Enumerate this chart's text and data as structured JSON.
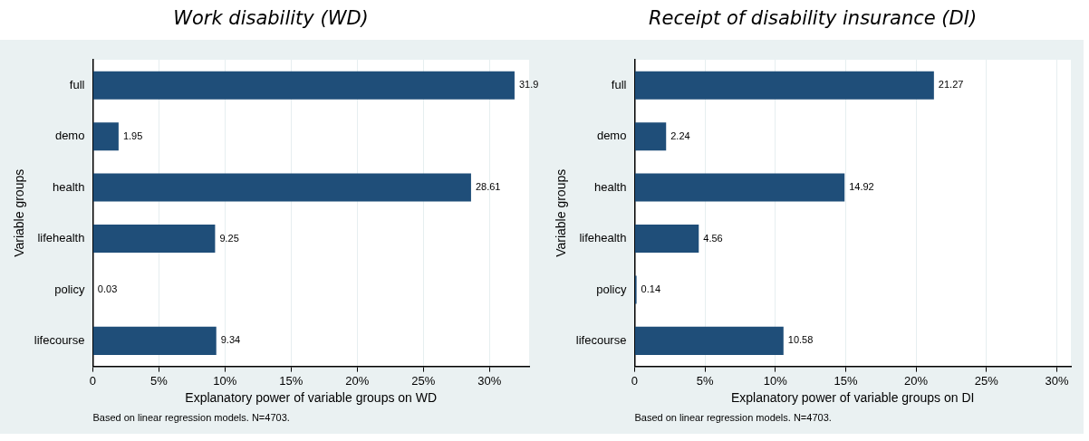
{
  "chart_data": [
    {
      "type": "bar",
      "orientation": "horizontal",
      "title": "Work disability (WD)",
      "xlabel": "Explanatory power of variable groups on WD",
      "ylabel": "Variable groups",
      "categories": [
        "full",
        "demo",
        "health",
        "lifehealth",
        "policy",
        "lifecourse"
      ],
      "values": [
        31.9,
        1.95,
        28.61,
        9.25,
        0.03,
        9.34
      ],
      "color": "#1f4e79",
      "data_labels": true,
      "xlim": [
        0,
        33
      ],
      "xticks": [
        0,
        {
          "value": 5,
          "label": "5%"
        },
        {
          "value": 10,
          "label": "10%"
        },
        {
          "value": 15,
          "label": "15%"
        },
        {
          "value": 20,
          "label": "20%"
        },
        {
          "value": 25,
          "label": "25%"
        },
        {
          "value": 30,
          "label": "30%"
        }
      ],
      "grid": "x",
      "legend": false,
      "annotations": [
        "Based on linear regression models. N=4703."
      ]
    },
    {
      "type": "bar",
      "orientation": "horizontal",
      "title": "Receipt of disability insurance (DI)",
      "xlabel": "Explanatory power of variable groups on DI",
      "ylabel": "Variable groups",
      "categories": [
        "full",
        "demo",
        "health",
        "lifehealth",
        "policy",
        "lifecourse"
      ],
      "values": [
        21.27,
        2.24,
        14.92,
        4.56,
        0.14,
        10.58
      ],
      "color": "#1f4e79",
      "data_labels": true,
      "xlim": [
        0,
        31
      ],
      "xticks": [
        0,
        {
          "value": 5,
          "label": "5%"
        },
        {
          "value": 10,
          "label": "10%"
        },
        {
          "value": 15,
          "label": "15%"
        },
        {
          "value": 20,
          "label": "20%"
        },
        {
          "value": 25,
          "label": "25%"
        },
        {
          "value": 30,
          "label": "30%"
        }
      ],
      "grid": "x",
      "legend": false,
      "annotations": [
        "Based on linear regression models. N=4703."
      ]
    }
  ]
}
